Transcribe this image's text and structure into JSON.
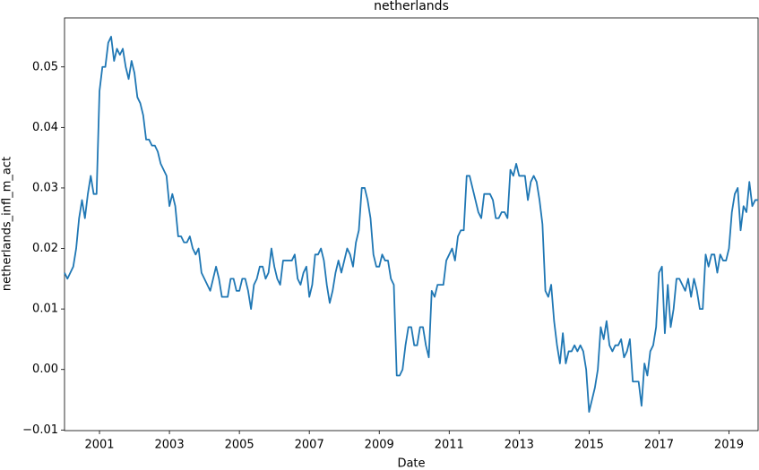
{
  "chart_data": {
    "type": "line",
    "title": "netherlands",
    "x_label": "Date",
    "y_label": "netherlands_infl_m_act",
    "color": "#1f77b4",
    "x": [
      "2000-01",
      "2000-02",
      "2000-03",
      "2000-04",
      "2000-05",
      "2000-06",
      "2000-07",
      "2000-08",
      "2000-09",
      "2000-10",
      "2000-11",
      "2000-12",
      "2001-01",
      "2001-02",
      "2001-03",
      "2001-04",
      "2001-05",
      "2001-06",
      "2001-07",
      "2001-08",
      "2001-09",
      "2001-10",
      "2001-11",
      "2001-12",
      "2002-01",
      "2002-02",
      "2002-03",
      "2002-04",
      "2002-05",
      "2002-06",
      "2002-07",
      "2002-08",
      "2002-09",
      "2002-10",
      "2002-11",
      "2002-12",
      "2003-01",
      "2003-02",
      "2003-03",
      "2003-04",
      "2003-05",
      "2003-06",
      "2003-07",
      "2003-08",
      "2003-09",
      "2003-10",
      "2003-11",
      "2003-12",
      "2004-01",
      "2004-02",
      "2004-03",
      "2004-04",
      "2004-05",
      "2004-06",
      "2004-07",
      "2004-08",
      "2004-09",
      "2004-10",
      "2004-11",
      "2004-12",
      "2005-01",
      "2005-02",
      "2005-03",
      "2005-04",
      "2005-05",
      "2005-06",
      "2005-07",
      "2005-08",
      "2005-09",
      "2005-10",
      "2005-11",
      "2005-12",
      "2006-01",
      "2006-02",
      "2006-03",
      "2006-04",
      "2006-05",
      "2006-06",
      "2006-07",
      "2006-08",
      "2006-09",
      "2006-10",
      "2006-11",
      "2006-12",
      "2007-01",
      "2007-02",
      "2007-03",
      "2007-04",
      "2007-05",
      "2007-06",
      "2007-07",
      "2007-08",
      "2007-09",
      "2007-10",
      "2007-11",
      "2007-12",
      "2008-01",
      "2008-02",
      "2008-03",
      "2008-04",
      "2008-05",
      "2008-06",
      "2008-07",
      "2008-08",
      "2008-09",
      "2008-10",
      "2008-11",
      "2008-12",
      "2009-01",
      "2009-02",
      "2009-03",
      "2009-04",
      "2009-05",
      "2009-06",
      "2009-07",
      "2009-08",
      "2009-09",
      "2009-10",
      "2009-11",
      "2009-12",
      "2010-01",
      "2010-02",
      "2010-03",
      "2010-04",
      "2010-05",
      "2010-06",
      "2010-07",
      "2010-08",
      "2010-09",
      "2010-10",
      "2010-11",
      "2010-12",
      "2011-01",
      "2011-02",
      "2011-03",
      "2011-04",
      "2011-05",
      "2011-06",
      "2011-07",
      "2011-08",
      "2011-09",
      "2011-10",
      "2011-11",
      "2011-12",
      "2012-01",
      "2012-02",
      "2012-03",
      "2012-04",
      "2012-05",
      "2012-06",
      "2012-07",
      "2012-08",
      "2012-09",
      "2012-10",
      "2012-11",
      "2012-12",
      "2013-01",
      "2013-02",
      "2013-03",
      "2013-04",
      "2013-05",
      "2013-06",
      "2013-07",
      "2013-08",
      "2013-09",
      "2013-10",
      "2013-11",
      "2013-12",
      "2014-01",
      "2014-02",
      "2014-03",
      "2014-04",
      "2014-05",
      "2014-06",
      "2014-07",
      "2014-08",
      "2014-09",
      "2014-10",
      "2014-11",
      "2014-12",
      "2015-01",
      "2015-02",
      "2015-03",
      "2015-04",
      "2015-05",
      "2015-06",
      "2015-07",
      "2015-08",
      "2015-09",
      "2015-10",
      "2015-11",
      "2015-12",
      "2016-01",
      "2016-02",
      "2016-03",
      "2016-04",
      "2016-05",
      "2016-06",
      "2016-07",
      "2016-08",
      "2016-09",
      "2016-10",
      "2016-11",
      "2016-12",
      "2017-01",
      "2017-02",
      "2017-03",
      "2017-04",
      "2017-05",
      "2017-06",
      "2017-07",
      "2017-08",
      "2017-09",
      "2017-10",
      "2017-11",
      "2017-12",
      "2018-01",
      "2018-02",
      "2018-03",
      "2018-04",
      "2018-05",
      "2018-06",
      "2018-07",
      "2018-08",
      "2018-09",
      "2018-10",
      "2018-11",
      "2018-12",
      "2019-01",
      "2019-02",
      "2019-03",
      "2019-04",
      "2019-05",
      "2019-06",
      "2019-07",
      "2019-08",
      "2019-09",
      "2019-10",
      "2019-11"
    ],
    "values": [
      0.016,
      0.015,
      0.016,
      0.017,
      0.02,
      0.025,
      0.028,
      0.025,
      0.029,
      0.032,
      0.029,
      0.029,
      0.046,
      0.05,
      0.05,
      0.054,
      0.055,
      0.051,
      0.053,
      0.052,
      0.053,
      0.05,
      0.048,
      0.051,
      0.049,
      0.045,
      0.044,
      0.042,
      0.038,
      0.038,
      0.037,
      0.037,
      0.036,
      0.034,
      0.033,
      0.032,
      0.027,
      0.029,
      0.027,
      0.022,
      0.022,
      0.021,
      0.021,
      0.022,
      0.02,
      0.019,
      0.02,
      0.016,
      0.015,
      0.014,
      0.013,
      0.015,
      0.017,
      0.015,
      0.012,
      0.012,
      0.012,
      0.015,
      0.015,
      0.013,
      0.013,
      0.015,
      0.015,
      0.013,
      0.01,
      0.014,
      0.015,
      0.017,
      0.017,
      0.015,
      0.016,
      0.02,
      0.017,
      0.015,
      0.014,
      0.018,
      0.018,
      0.018,
      0.018,
      0.019,
      0.015,
      0.014,
      0.016,
      0.017,
      0.012,
      0.014,
      0.019,
      0.019,
      0.02,
      0.018,
      0.014,
      0.011,
      0.013,
      0.016,
      0.018,
      0.016,
      0.018,
      0.02,
      0.019,
      0.017,
      0.021,
      0.023,
      0.03,
      0.03,
      0.028,
      0.025,
      0.019,
      0.017,
      0.017,
      0.019,
      0.018,
      0.018,
      0.015,
      0.014,
      -0.001,
      -0.001,
      0.0,
      0.004,
      0.007,
      0.007,
      0.004,
      0.004,
      0.007,
      0.007,
      0.004,
      0.002,
      0.013,
      0.012,
      0.014,
      0.014,
      0.014,
      0.018,
      0.019,
      0.02,
      0.018,
      0.022,
      0.023,
      0.023,
      0.032,
      0.032,
      0.03,
      0.028,
      0.026,
      0.025,
      0.029,
      0.029,
      0.029,
      0.028,
      0.025,
      0.025,
      0.026,
      0.026,
      0.025,
      0.033,
      0.032,
      0.034,
      0.032,
      0.032,
      0.032,
      0.028,
      0.031,
      0.032,
      0.031,
      0.028,
      0.024,
      0.013,
      0.012,
      0.014,
      0.008,
      0.004,
      0.001,
      0.006,
      0.001,
      0.003,
      0.003,
      0.004,
      0.003,
      0.004,
      0.003,
      0.0,
      -0.007,
      -0.005,
      -0.003,
      0.0,
      0.007,
      0.005,
      0.008,
      0.004,
      0.003,
      0.004,
      0.004,
      0.005,
      0.002,
      0.003,
      0.005,
      -0.002,
      -0.002,
      -0.002,
      -0.006,
      0.001,
      -0.001,
      0.003,
      0.004,
      0.007,
      0.016,
      0.017,
      0.006,
      0.014,
      0.007,
      0.01,
      0.015,
      0.015,
      0.014,
      0.013,
      0.015,
      0.012,
      0.015,
      0.013,
      0.01,
      0.01,
      0.019,
      0.017,
      0.019,
      0.019,
      0.016,
      0.019,
      0.018,
      0.018,
      0.02,
      0.026,
      0.029,
      0.03,
      0.023,
      0.027,
      0.026,
      0.031,
      0.027,
      0.028,
      0.028
    ],
    "xlim": [
      2000,
      2019.8333
    ],
    "xticks": [
      2001,
      2003,
      2005,
      2007,
      2009,
      2011,
      2013,
      2015,
      2017,
      2019
    ],
    "ylim": [
      -0.0101,
      0.0581
    ],
    "yticks": [
      {
        "value": -0.01,
        "label": "−0.01"
      },
      {
        "value": 0,
        "label": "0.00"
      },
      0.01,
      0.02,
      0.03,
      0.04,
      0.05
    ],
    "grid": false
  }
}
